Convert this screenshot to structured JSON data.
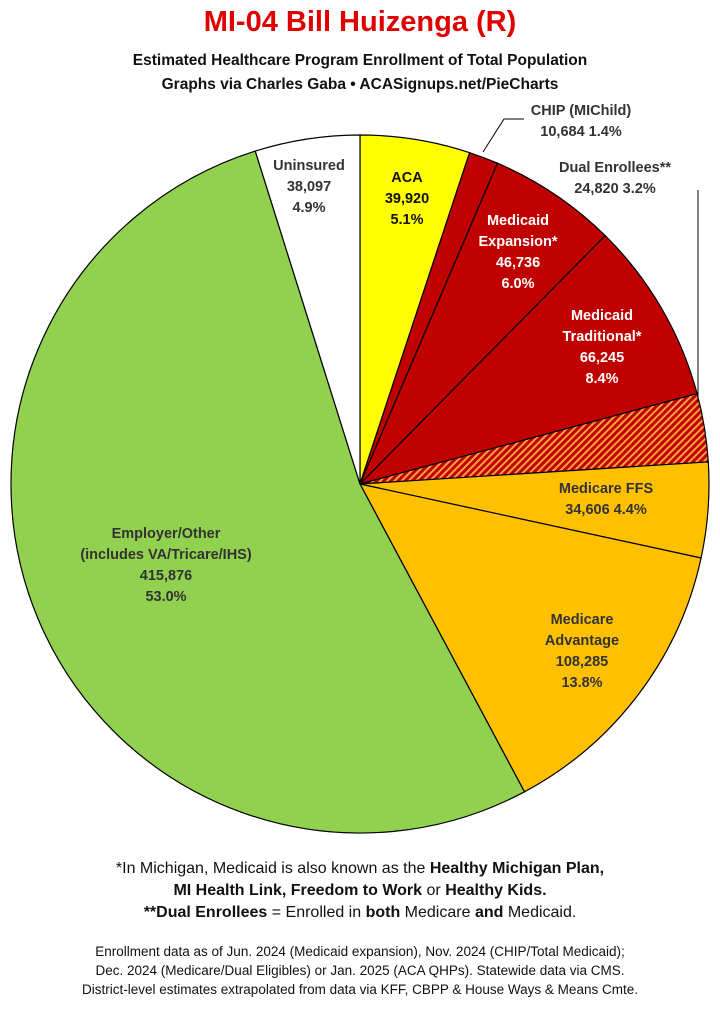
{
  "title": "MI-04 Bill Huizenga (R)",
  "subtitle_line1": "Estimated Healthcare Program Enrollment of Total Population",
  "subtitle_line2": "Graphs via Charles Gaba  •  ACASignups.net/PieCharts",
  "colors": {
    "title": "#e00000",
    "aca": "#ffff00",
    "medicaid": "#c00000",
    "dual_hatch": "#c00000",
    "dual_hatch_bg": "#ffa040",
    "medicare": "#ffc000",
    "employer": "#92d050",
    "uninsured": "#ffffff",
    "outline": "#000000"
  },
  "chart_data": {
    "type": "pie",
    "start_angle_deg": 0,
    "direction": "clockwise",
    "slices": [
      {
        "id": "aca",
        "label_lines": [
          "ACA",
          "39,920",
          "5.1%"
        ],
        "value": 39920,
        "percent": 5.1,
        "color": "#ffff00",
        "pattern": "solid",
        "label_color": "#111111",
        "label_outside": false
      },
      {
        "id": "chip",
        "label_lines": [
          "CHIP (MIChild)",
          "10,684 1.4%"
        ],
        "value": 10684,
        "percent": 1.4,
        "color": "#c00000",
        "pattern": "solid",
        "label_color": "#333333",
        "label_outside": true
      },
      {
        "id": "medicaid-expansion",
        "label_lines": [
          "Medicaid",
          "Expansion*",
          "46,736",
          "6.0%"
        ],
        "value": 46736,
        "percent": 6.0,
        "color": "#c00000",
        "pattern": "solid",
        "label_color": "#ffffff",
        "label_outside": false
      },
      {
        "id": "medicaid-traditional",
        "label_lines": [
          "Medicaid",
          "Traditional*",
          "66,245",
          "8.4%"
        ],
        "value": 66245,
        "percent": 8.4,
        "color": "#c00000",
        "pattern": "solid",
        "label_color": "#ffffff",
        "label_outside": false
      },
      {
        "id": "dual-enrollees",
        "label_lines": [
          "Dual Enrollees**",
          "24,820 3.2%"
        ],
        "value": 24820,
        "percent": 3.2,
        "color": "#c00000",
        "pattern": "hatch",
        "label_color": "#333333",
        "label_outside": true
      },
      {
        "id": "medicare-ffs",
        "label_lines": [
          "Medicare FFS",
          "34,606 4.4%"
        ],
        "value": 34606,
        "percent": 4.4,
        "color": "#ffc000",
        "pattern": "solid",
        "label_color": "#333333",
        "label_outside": false
      },
      {
        "id": "medicare-advantage",
        "label_lines": [
          "Medicare",
          "Advantage",
          "108,285",
          "13.8%"
        ],
        "value": 108285,
        "percent": 13.8,
        "color": "#ffc000",
        "pattern": "solid",
        "label_color": "#333333",
        "label_outside": false
      },
      {
        "id": "employer-other",
        "label_lines": [
          "Employer/Other",
          "(includes VA/Tricare/IHS)",
          "415,876",
          "53.0%"
        ],
        "value": 415876,
        "percent": 53.0,
        "color": "#92d050",
        "pattern": "solid",
        "label_color": "#333333",
        "label_outside": false
      },
      {
        "id": "uninsured",
        "label_lines": [
          "Uninsured",
          "38,097",
          "4.9%"
        ],
        "value": 38097,
        "percent": 4.9,
        "color": "#ffffff",
        "pattern": "solid",
        "label_color": "#333333",
        "label_outside": false
      }
    ]
  },
  "footnotes": {
    "line1_a": "*In Michigan, Medicaid is also known as the ",
    "line1_b": "Healthy Michigan Plan,",
    "line2_a": "MI Health Link",
    "line2_b": ", ",
    "line2_c": "Freedom to Work",
    "line2_d": " or ",
    "line2_e": "Healthy Kids.",
    "line3_a": "**Dual Enrollees",
    "line3_b": " = Enrolled in ",
    "line3_c": "both",
    "line3_d": " Medicare ",
    "line3_e": "and",
    "line3_f": " Medicaid."
  },
  "source": {
    "line1": "Enrollment data as of Jun. 2024 (Medicaid expansion), Nov. 2024 (CHIP/Total Medicaid);",
    "line2": "Dec. 2024 (Medicare/Dual Eligibles) or Jan. 2025 (ACA QHPs). Statewide data via CMS.",
    "line3": "District-level estimates extrapolated from data via KFF, CBPP & House Ways & Means Cmte."
  }
}
